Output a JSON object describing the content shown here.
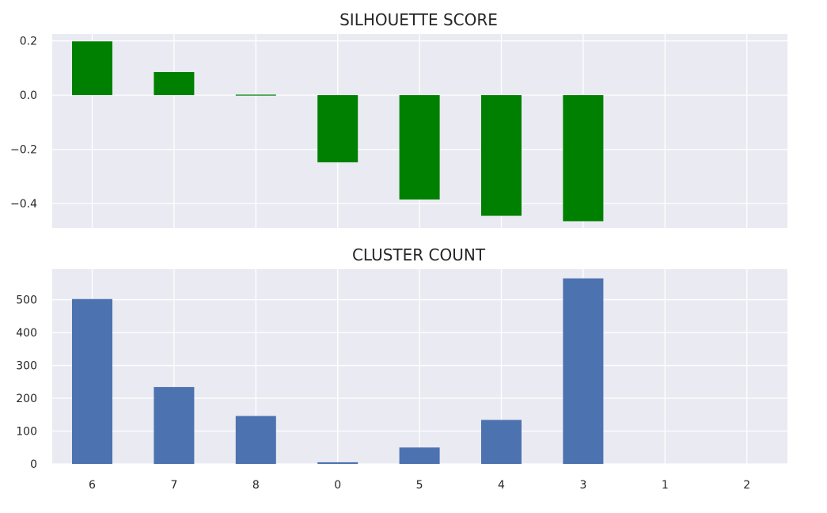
{
  "chart_data": [
    {
      "type": "bar",
      "title": "SILHOUETTE SCORE",
      "xlabel": "",
      "ylabel": "",
      "categories": [
        "6",
        "7",
        "8",
        "0",
        "5",
        "4",
        "3",
        "1",
        "2"
      ],
      "values": [
        0.198,
        0.085,
        0.003,
        -0.248,
        -0.385,
        -0.445,
        -0.465,
        null,
        null
      ],
      "ylim": [
        -0.49,
        0.225
      ],
      "yticks": [
        0.2,
        0.0,
        -0.2,
        -0.4
      ],
      "ytick_labels": [
        "0.2",
        "0.0",
        "−0.2",
        "−0.4"
      ],
      "grid": true,
      "x_tick_labels_visible": false,
      "bar_color": "#008000"
    },
    {
      "type": "bar",
      "title": "CLUSTER COUNT",
      "xlabel": "",
      "ylabel": "",
      "categories": [
        "6",
        "7",
        "8",
        "0",
        "5",
        "4",
        "3",
        "1",
        "2"
      ],
      "values": [
        502,
        234,
        146,
        5,
        50,
        134,
        565,
        0,
        0
      ],
      "ylim": [
        0,
        593
      ],
      "yticks": [
        0,
        100,
        200,
        300,
        400,
        500
      ],
      "ytick_labels": [
        "0",
        "100",
        "200",
        "300",
        "400",
        "500"
      ],
      "grid": true,
      "x_tick_labels_visible": true,
      "bar_color": "#4c72b0"
    }
  ],
  "colors": {
    "plot_background": "#eaeaf2",
    "grid": "#ffffff",
    "text": "#262626"
  }
}
